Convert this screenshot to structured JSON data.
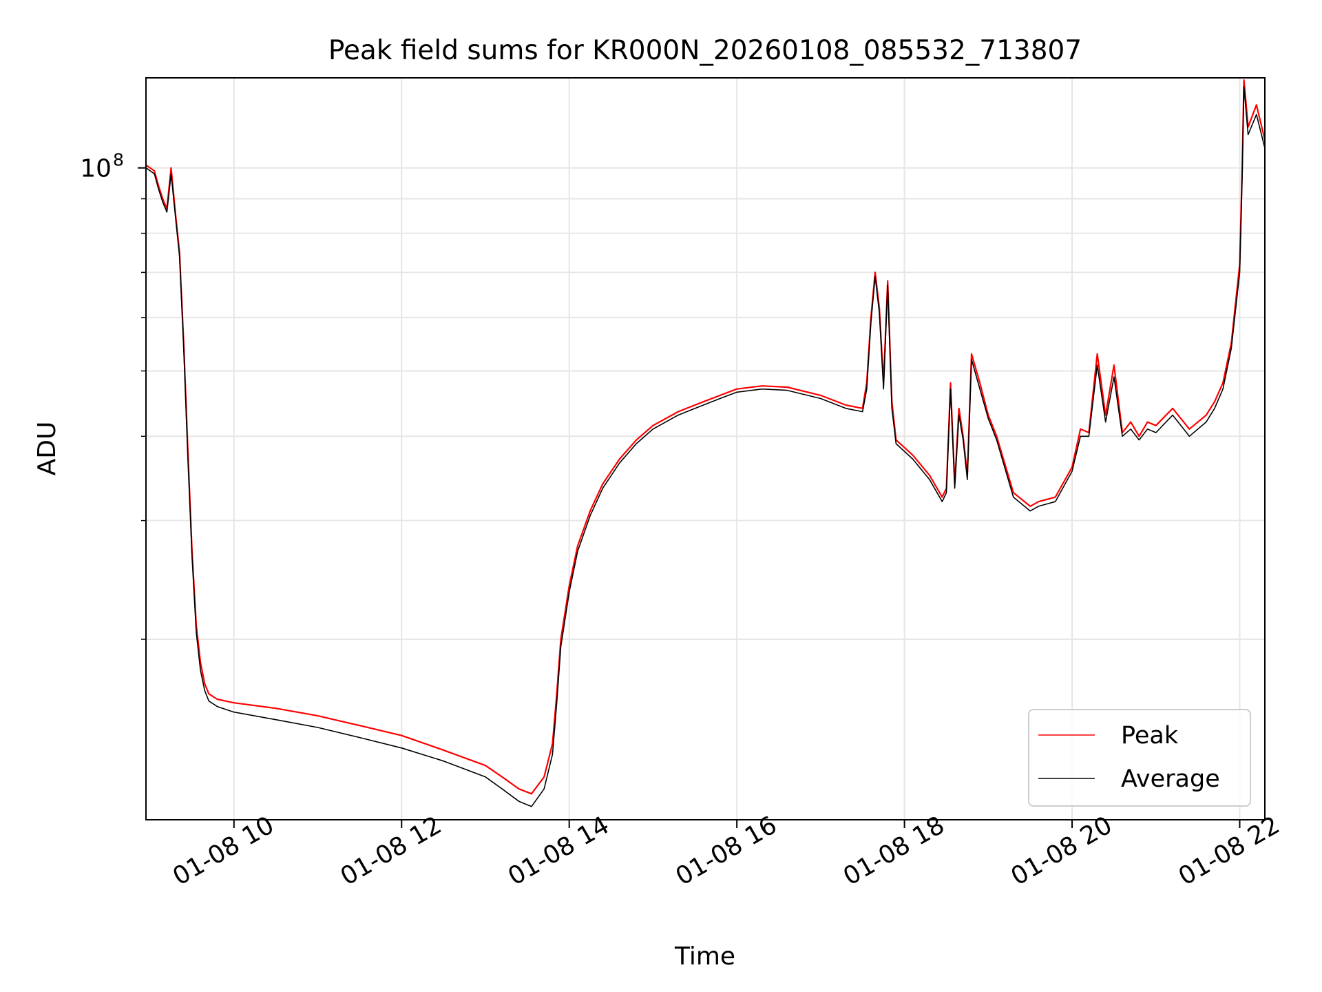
{
  "chart_data": {
    "type": "line",
    "title": "Peak field sums for KR000N_20260108_085532_713807",
    "xlabel": "Time",
    "ylabel": "ADU",
    "yscale": "log",
    "grid": true,
    "legend_position": "lower-right",
    "x_range_hours": [
      8.95,
      22.3
    ],
    "ylim": [
      10800000,
      136000000
    ],
    "x_ticks": [
      {
        "hour": 10,
        "label": "01-08 10"
      },
      {
        "hour": 12,
        "label": "01-08 12"
      },
      {
        "hour": 14,
        "label": "01-08 14"
      },
      {
        "hour": 16,
        "label": "01-08 16"
      },
      {
        "hour": 18,
        "label": "01-08 18"
      },
      {
        "hour": 20,
        "label": "01-08 20"
      },
      {
        "hour": 22,
        "label": "01-08 22"
      }
    ],
    "y_major_ticks": [
      {
        "value": 100000000,
        "base": "10",
        "exp": "8"
      }
    ],
    "y_minor_ticks": [
      20000000,
      30000000,
      40000000,
      50000000,
      60000000,
      70000000,
      80000000,
      90000000
    ],
    "series": [
      {
        "name": "Peak",
        "color": "#ff0000",
        "x_hours": [
          8.95,
          9.05,
          9.1,
          9.15,
          9.2,
          9.25,
          9.3,
          9.35,
          9.4,
          9.45,
          9.5,
          9.55,
          9.6,
          9.65,
          9.7,
          9.8,
          10.0,
          10.5,
          11.0,
          11.5,
          12.0,
          12.5,
          13.0,
          13.2,
          13.4,
          13.55,
          13.7,
          13.8,
          13.85,
          13.9,
          14.0,
          14.1,
          14.25,
          14.4,
          14.6,
          14.8,
          15.0,
          15.3,
          15.6,
          15.8,
          16.0,
          16.3,
          16.6,
          17.0,
          17.3,
          17.5,
          17.55,
          17.6,
          17.65,
          17.7,
          17.75,
          17.8,
          17.85,
          17.9,
          18.1,
          18.3,
          18.45,
          18.5,
          18.55,
          18.6,
          18.65,
          18.7,
          18.75,
          18.8,
          18.9,
          19.0,
          19.1,
          19.3,
          19.5,
          19.6,
          19.8,
          20.0,
          20.1,
          20.2,
          20.3,
          20.4,
          20.5,
          20.6,
          20.7,
          20.8,
          20.9,
          21.0,
          21.2,
          21.4,
          21.6,
          21.7,
          21.8,
          21.9,
          22.0,
          22.03,
          22.05,
          22.1,
          22.2,
          22.3
        ],
        "values": [
          101000000,
          99000000,
          94000000,
          90000000,
          87000000,
          100000000,
          86000000,
          75000000,
          55000000,
          38000000,
          27000000,
          21000000,
          18500000,
          17200000,
          16600000,
          16300000,
          16100000,
          15800000,
          15400000,
          14900000,
          14400000,
          13700000,
          13000000,
          12500000,
          12000000,
          11800000,
          12500000,
          14000000,
          16500000,
          20000000,
          24000000,
          27500000,
          31000000,
          34000000,
          37000000,
          39500000,
          41500000,
          43500000,
          45000000,
          46000000,
          47000000,
          47500000,
          47300000,
          46000000,
          44500000,
          44000000,
          48000000,
          60000000,
          70000000,
          62000000,
          48000000,
          68000000,
          45000000,
          39500000,
          37500000,
          35000000,
          32500000,
          33500000,
          48000000,
          34000000,
          44000000,
          40000000,
          35000000,
          53000000,
          48000000,
          43000000,
          40000000,
          33000000,
          31500000,
          32000000,
          32500000,
          36000000,
          41000000,
          40500000,
          53000000,
          43000000,
          51000000,
          40500000,
          42000000,
          40000000,
          42000000,
          41500000,
          44000000,
          41000000,
          43000000,
          45000000,
          48000000,
          55000000,
          72000000,
          100000000,
          135000000,
          115000000,
          124000000,
          110000000
        ]
      },
      {
        "name": "Average",
        "color": "#000000",
        "x_hours": [
          8.95,
          9.05,
          9.1,
          9.15,
          9.2,
          9.25,
          9.3,
          9.35,
          9.4,
          9.45,
          9.5,
          9.55,
          9.6,
          9.65,
          9.7,
          9.8,
          10.0,
          10.5,
          11.0,
          11.5,
          12.0,
          12.5,
          13.0,
          13.2,
          13.4,
          13.55,
          13.7,
          13.8,
          13.85,
          13.9,
          14.0,
          14.1,
          14.25,
          14.4,
          14.6,
          14.8,
          15.0,
          15.3,
          15.6,
          15.8,
          16.0,
          16.3,
          16.6,
          17.0,
          17.3,
          17.5,
          17.55,
          17.6,
          17.65,
          17.7,
          17.75,
          17.8,
          17.85,
          17.9,
          18.1,
          18.3,
          18.45,
          18.5,
          18.55,
          18.6,
          18.65,
          18.7,
          18.75,
          18.8,
          18.9,
          19.0,
          19.1,
          19.3,
          19.5,
          19.6,
          19.8,
          20.0,
          20.1,
          20.2,
          20.3,
          20.4,
          20.5,
          20.6,
          20.7,
          20.8,
          20.9,
          21.0,
          21.2,
          21.4,
          21.6,
          21.7,
          21.8,
          21.9,
          22.0,
          22.03,
          22.05,
          22.1,
          22.2,
          22.3
        ],
        "values": [
          100000000,
          98000000,
          93000000,
          89000000,
          86000000,
          98000000,
          85000000,
          74000000,
          54000000,
          37000000,
          26500000,
          20500000,
          18000000,
          16800000,
          16200000,
          15900000,
          15600000,
          15200000,
          14800000,
          14300000,
          13800000,
          13200000,
          12500000,
          12000000,
          11500000,
          11300000,
          12000000,
          13500000,
          16000000,
          19500000,
          23500000,
          27000000,
          30500000,
          33500000,
          36500000,
          39000000,
          41000000,
          43000000,
          44500000,
          45500000,
          46500000,
          47000000,
          46800000,
          45500000,
          44000000,
          43500000,
          47000000,
          59000000,
          69000000,
          61000000,
          47000000,
          67000000,
          44000000,
          39000000,
          37000000,
          34500000,
          32000000,
          33000000,
          47000000,
          33500000,
          43000000,
          39500000,
          34500000,
          52000000,
          47000000,
          42500000,
          39500000,
          32500000,
          31000000,
          31500000,
          32000000,
          35500000,
          40000000,
          40000000,
          51000000,
          42000000,
          49000000,
          40000000,
          41000000,
          39500000,
          41000000,
          40500000,
          43000000,
          40000000,
          42000000,
          44000000,
          47000000,
          54000000,
          70000000,
          97000000,
          132000000,
          112000000,
          120000000,
          107000000
        ]
      }
    ]
  }
}
